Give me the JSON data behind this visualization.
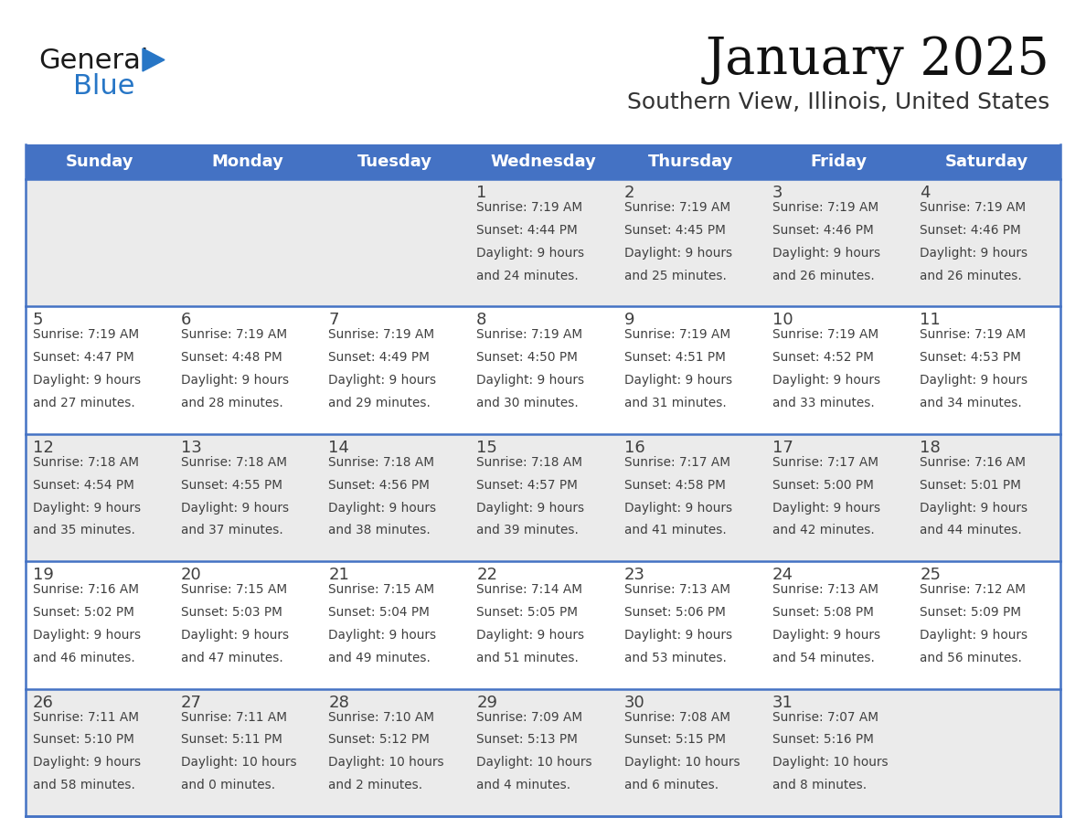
{
  "title": "January 2025",
  "subtitle": "Southern View, Illinois, United States",
  "header_bg": "#4472C4",
  "header_text_color": "#FFFFFF",
  "row1_bg": "#EBEBEB",
  "row_bg": "#FFFFFF",
  "separator_color": "#4472C4",
  "text_color": "#404040",
  "days_of_week": [
    "Sunday",
    "Monday",
    "Tuesday",
    "Wednesday",
    "Thursday",
    "Friday",
    "Saturday"
  ],
  "weeks": [
    {
      "bg": "#EBEBEB",
      "days": [
        {
          "day": "",
          "sunrise": "",
          "sunset": "",
          "daylight": ""
        },
        {
          "day": "",
          "sunrise": "",
          "sunset": "",
          "daylight": ""
        },
        {
          "day": "",
          "sunrise": "",
          "sunset": "",
          "daylight": ""
        },
        {
          "day": "1",
          "sunrise": "7:19 AM",
          "sunset": "4:44 PM",
          "daylight": "9 hours\nand 24 minutes."
        },
        {
          "day": "2",
          "sunrise": "7:19 AM",
          "sunset": "4:45 PM",
          "daylight": "9 hours\nand 25 minutes."
        },
        {
          "day": "3",
          "sunrise": "7:19 AM",
          "sunset": "4:46 PM",
          "daylight": "9 hours\nand 26 minutes."
        },
        {
          "day": "4",
          "sunrise": "7:19 AM",
          "sunset": "4:46 PM",
          "daylight": "9 hours\nand 26 minutes."
        }
      ]
    },
    {
      "bg": "#FFFFFF",
      "days": [
        {
          "day": "5",
          "sunrise": "7:19 AM",
          "sunset": "4:47 PM",
          "daylight": "9 hours\nand 27 minutes."
        },
        {
          "day": "6",
          "sunrise": "7:19 AM",
          "sunset": "4:48 PM",
          "daylight": "9 hours\nand 28 minutes."
        },
        {
          "day": "7",
          "sunrise": "7:19 AM",
          "sunset": "4:49 PM",
          "daylight": "9 hours\nand 29 minutes."
        },
        {
          "day": "8",
          "sunrise": "7:19 AM",
          "sunset": "4:50 PM",
          "daylight": "9 hours\nand 30 minutes."
        },
        {
          "day": "9",
          "sunrise": "7:19 AM",
          "sunset": "4:51 PM",
          "daylight": "9 hours\nand 31 minutes."
        },
        {
          "day": "10",
          "sunrise": "7:19 AM",
          "sunset": "4:52 PM",
          "daylight": "9 hours\nand 33 minutes."
        },
        {
          "day": "11",
          "sunrise": "7:19 AM",
          "sunset": "4:53 PM",
          "daylight": "9 hours\nand 34 minutes."
        }
      ]
    },
    {
      "bg": "#EBEBEB",
      "days": [
        {
          "day": "12",
          "sunrise": "7:18 AM",
          "sunset": "4:54 PM",
          "daylight": "9 hours\nand 35 minutes."
        },
        {
          "day": "13",
          "sunrise": "7:18 AM",
          "sunset": "4:55 PM",
          "daylight": "9 hours\nand 37 minutes."
        },
        {
          "day": "14",
          "sunrise": "7:18 AM",
          "sunset": "4:56 PM",
          "daylight": "9 hours\nand 38 minutes."
        },
        {
          "day": "15",
          "sunrise": "7:18 AM",
          "sunset": "4:57 PM",
          "daylight": "9 hours\nand 39 minutes."
        },
        {
          "day": "16",
          "sunrise": "7:17 AM",
          "sunset": "4:58 PM",
          "daylight": "9 hours\nand 41 minutes."
        },
        {
          "day": "17",
          "sunrise": "7:17 AM",
          "sunset": "5:00 PM",
          "daylight": "9 hours\nand 42 minutes."
        },
        {
          "day": "18",
          "sunrise": "7:16 AM",
          "sunset": "5:01 PM",
          "daylight": "9 hours\nand 44 minutes."
        }
      ]
    },
    {
      "bg": "#FFFFFF",
      "days": [
        {
          "day": "19",
          "sunrise": "7:16 AM",
          "sunset": "5:02 PM",
          "daylight": "9 hours\nand 46 minutes."
        },
        {
          "day": "20",
          "sunrise": "7:15 AM",
          "sunset": "5:03 PM",
          "daylight": "9 hours\nand 47 minutes."
        },
        {
          "day": "21",
          "sunrise": "7:15 AM",
          "sunset": "5:04 PM",
          "daylight": "9 hours\nand 49 minutes."
        },
        {
          "day": "22",
          "sunrise": "7:14 AM",
          "sunset": "5:05 PM",
          "daylight": "9 hours\nand 51 minutes."
        },
        {
          "day": "23",
          "sunrise": "7:13 AM",
          "sunset": "5:06 PM",
          "daylight": "9 hours\nand 53 minutes."
        },
        {
          "day": "24",
          "sunrise": "7:13 AM",
          "sunset": "5:08 PM",
          "daylight": "9 hours\nand 54 minutes."
        },
        {
          "day": "25",
          "sunrise": "7:12 AM",
          "sunset": "5:09 PM",
          "daylight": "9 hours\nand 56 minutes."
        }
      ]
    },
    {
      "bg": "#EBEBEB",
      "days": [
        {
          "day": "26",
          "sunrise": "7:11 AM",
          "sunset": "5:10 PM",
          "daylight": "9 hours\nand 58 minutes."
        },
        {
          "day": "27",
          "sunrise": "7:11 AM",
          "sunset": "5:11 PM",
          "daylight": "10 hours\nand 0 minutes."
        },
        {
          "day": "28",
          "sunrise": "7:10 AM",
          "sunset": "5:12 PM",
          "daylight": "10 hours\nand 2 minutes."
        },
        {
          "day": "29",
          "sunrise": "7:09 AM",
          "sunset": "5:13 PM",
          "daylight": "10 hours\nand 4 minutes."
        },
        {
          "day": "30",
          "sunrise": "7:08 AM",
          "sunset": "5:15 PM",
          "daylight": "10 hours\nand 6 minutes."
        },
        {
          "day": "31",
          "sunrise": "7:07 AM",
          "sunset": "5:16 PM",
          "daylight": "10 hours\nand 8 minutes."
        },
        {
          "day": "",
          "sunrise": "",
          "sunset": "",
          "daylight": ""
        }
      ]
    }
  ],
  "logo_general_color": "#1a1a1a",
  "logo_blue_color": "#2776C6",
  "logo_triangle_color": "#2776C6",
  "fig_width": 11.88,
  "fig_height": 9.18,
  "dpi": 100
}
